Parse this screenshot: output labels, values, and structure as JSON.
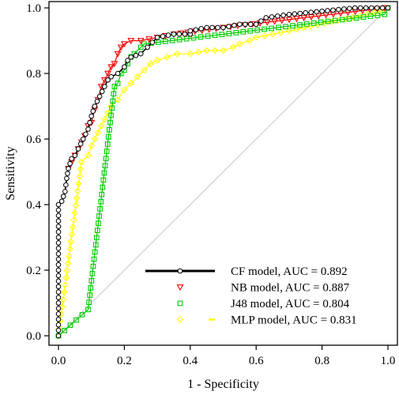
{
  "chart_data": {
    "type": "line",
    "title": "",
    "xlabel": "1 - Specificity",
    "ylabel": "Sensitivity",
    "xlim": [
      0,
      1
    ],
    "ylim": [
      0,
      1
    ],
    "xticks": [
      "0.0",
      "0.2",
      "0.4",
      "0.6",
      "0.8",
      "1.0"
    ],
    "yticks": [
      "0.0",
      "0.2",
      "0.4",
      "0.6",
      "0.8",
      "1.0"
    ],
    "grid": false,
    "legend_position": "bottom-right",
    "diagonal_reference": true,
    "series": [
      {
        "name": "CF model, AUC = 0.892",
        "color": "#000000",
        "marker": "circle",
        "points": [
          [
            0,
            0
          ],
          [
            0,
            0.1
          ],
          [
            0,
            0.2
          ],
          [
            0,
            0.3
          ],
          [
            0,
            0.4
          ],
          [
            0.01,
            0.41
          ],
          [
            0.02,
            0.44
          ],
          [
            0.025,
            0.48
          ],
          [
            0.03,
            0.51
          ],
          [
            0.04,
            0.54
          ],
          [
            0.05,
            0.55
          ],
          [
            0.06,
            0.57
          ],
          [
            0.075,
            0.6
          ],
          [
            0.09,
            0.63
          ],
          [
            0.1,
            0.67
          ],
          [
            0.11,
            0.7
          ],
          [
            0.125,
            0.73
          ],
          [
            0.14,
            0.76
          ],
          [
            0.15,
            0.78
          ],
          [
            0.16,
            0.79
          ],
          [
            0.18,
            0.8
          ],
          [
            0.2,
            0.82
          ],
          [
            0.21,
            0.84
          ],
          [
            0.22,
            0.85
          ],
          [
            0.25,
            0.86
          ],
          [
            0.27,
            0.88
          ],
          [
            0.3,
            0.91
          ],
          [
            0.35,
            0.92
          ],
          [
            0.4,
            0.92
          ],
          [
            0.4,
            0.93
          ],
          [
            0.45,
            0.94
          ],
          [
            0.5,
            0.94
          ],
          [
            0.55,
            0.95
          ],
          [
            0.6,
            0.95
          ],
          [
            0.63,
            0.97
          ],
          [
            0.7,
            0.98
          ],
          [
            0.8,
            0.99
          ],
          [
            0.9,
            1.0
          ],
          [
            1.0,
            1.0
          ]
        ]
      },
      {
        "name": "NB model, AUC = 0.887",
        "color": "#ff0000",
        "marker": "triangle-down",
        "points": [
          [
            0.03,
            0.51
          ],
          [
            0.06,
            0.57
          ],
          [
            0.08,
            0.61
          ],
          [
            0.09,
            0.64
          ],
          [
            0.1,
            0.65
          ],
          [
            0.11,
            0.69
          ],
          [
            0.12,
            0.72
          ],
          [
            0.13,
            0.76
          ],
          [
            0.14,
            0.78
          ],
          [
            0.16,
            0.82
          ],
          [
            0.17,
            0.83
          ],
          [
            0.18,
            0.86
          ],
          [
            0.19,
            0.88
          ],
          [
            0.2,
            0.89
          ],
          [
            0.22,
            0.9
          ],
          [
            0.25,
            0.9
          ],
          [
            0.3,
            0.91
          ],
          [
            0.35,
            0.92
          ],
          [
            0.5,
            0.94
          ],
          [
            0.99,
            1.0
          ]
        ]
      },
      {
        "name": "J48 model, AUC = 0.804",
        "color": "#00cc00",
        "marker": "square",
        "points": [
          [
            0,
            0
          ],
          [
            0.09,
            0.08
          ],
          [
            0.17,
            0.76
          ],
          [
            0.18,
            0.77
          ],
          [
            0.19,
            0.8
          ],
          [
            0.2,
            0.81
          ],
          [
            0.21,
            0.83
          ],
          [
            0.22,
            0.85
          ],
          [
            0.23,
            0.86
          ],
          [
            0.25,
            0.88
          ],
          [
            0.26,
            0.89
          ],
          [
            0.99,
            0.98
          ],
          [
            1.0,
            1.0
          ]
        ]
      },
      {
        "name": "MLP model, AUC = 0.831",
        "color": "#ffff00",
        "marker": "diamond",
        "points": [
          [
            0,
            0
          ],
          [
            0.07,
            0.53
          ],
          [
            0.09,
            0.55
          ],
          [
            0.1,
            0.58
          ],
          [
            0.11,
            0.6
          ],
          [
            0.12,
            0.62
          ],
          [
            0.13,
            0.64
          ],
          [
            0.14,
            0.66
          ],
          [
            0.15,
            0.68
          ],
          [
            0.16,
            0.7
          ],
          [
            0.18,
            0.72
          ],
          [
            0.2,
            0.75
          ],
          [
            0.22,
            0.77
          ],
          [
            0.24,
            0.79
          ],
          [
            0.26,
            0.81
          ],
          [
            0.28,
            0.83
          ],
          [
            0.3,
            0.84
          ],
          [
            0.33,
            0.85
          ],
          [
            0.36,
            0.86
          ],
          [
            0.4,
            0.86
          ],
          [
            0.45,
            0.87
          ],
          [
            0.5,
            0.87
          ],
          [
            0.53,
            0.88
          ],
          [
            0.55,
            0.89
          ],
          [
            0.58,
            0.9
          ],
          [
            0.6,
            0.91
          ],
          [
            0.7,
            0.93
          ],
          [
            0.98,
            0.99
          ],
          [
            1.0,
            1.0
          ]
        ]
      }
    ]
  }
}
